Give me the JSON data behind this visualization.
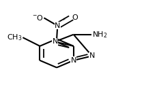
{
  "fig_width": 2.33,
  "fig_height": 1.53,
  "dpi": 100,
  "bg_color": "#ffffff",
  "bond_lw": 1.5,
  "font_size": 8.0,
  "bl": 0.115,
  "c6x": 0.38,
  "c6y": 0.5,
  "xlim": [
    0.05,
    0.98
  ],
  "ylim": [
    0.1,
    0.92
  ]
}
